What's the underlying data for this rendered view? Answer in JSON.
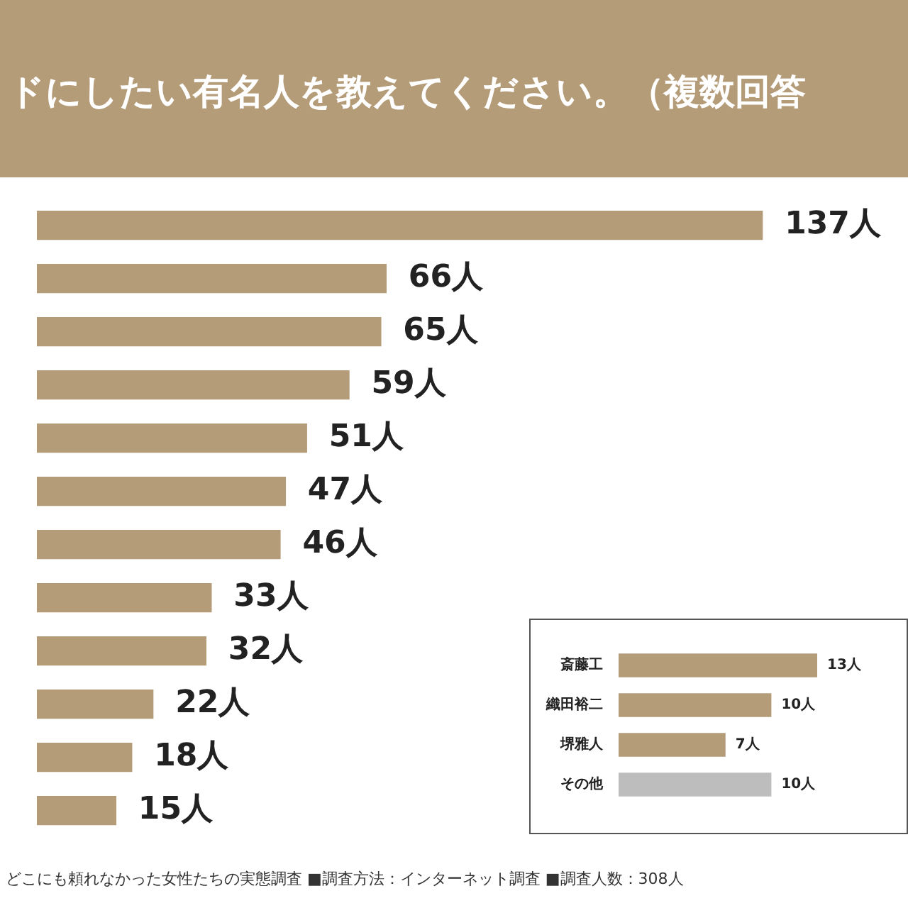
{
  "chart_data": [
    {
      "type": "bar",
      "orientation": "horizontal",
      "title": "ドにしたい有名人を教えてください。（複数回答",
      "categories": [
        null,
        null,
        null,
        null,
        null,
        null,
        null,
        null,
        null,
        null,
        null,
        null
      ],
      "values": [
        137,
        66,
        65,
        59,
        51,
        47,
        46,
        33,
        32,
        22,
        18,
        15
      ],
      "value_labels": [
        "137人",
        "66人",
        "65人",
        "59人",
        "51人",
        "47人",
        "46人",
        "33人",
        "32人",
        "22人",
        "18人",
        "15人"
      ],
      "color": "#b59c78",
      "annotations": [
        "どこにも頼れなかった女性たちの実態調査 ■調査方法：インターネット調査 ■調査人数：308人"
      ]
    },
    {
      "type": "bar",
      "orientation": "horizontal",
      "categories": [
        "斎藤工",
        "織田裕二",
        "堺雅人",
        "その他"
      ],
      "values": [
        13,
        10,
        7,
        10
      ],
      "value_labels": [
        "13人",
        "10人",
        "7人",
        "10人"
      ],
      "colors": [
        "#b59c78",
        "#b59c78",
        "#b59c78",
        "#bdbdbd"
      ]
    }
  ]
}
